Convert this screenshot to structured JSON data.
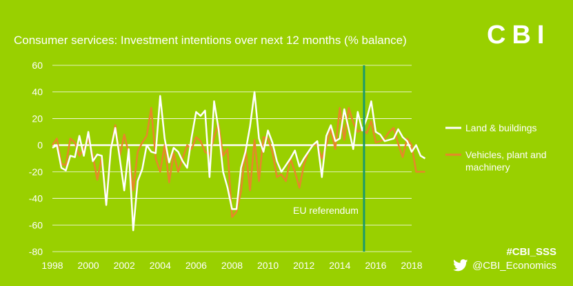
{
  "header": {
    "title": "Consumer services: Investment intentions over next 12 months (% balance)",
    "logo": "CBI"
  },
  "footer": {
    "hashtag": "#CBI_SSS",
    "twitter_handle": "@CBI_Economics"
  },
  "colors": {
    "background": "#99d000",
    "series_land": "#ffffff",
    "series_vehicles": "#e8862a",
    "marker": "#1a9a6a",
    "gridline": "#ffffff"
  },
  "chart_data": {
    "type": "line",
    "title": "Consumer services: Investment intentions over next 12 months (% balance)",
    "ylim": [
      -80,
      60
    ],
    "yticks": [
      -80,
      -60,
      -40,
      -20,
      0,
      20,
      40,
      60
    ],
    "xlim": [
      1998,
      2018
    ],
    "xticks": [
      1998,
      2000,
      2002,
      2004,
      2006,
      2008,
      2010,
      2012,
      2014,
      2016,
      2018
    ],
    "grid": true,
    "legend_position": "right",
    "annotation": {
      "label": "EU referendum",
      "x": 2016.5
    },
    "series": [
      {
        "name": "Land & buildings",
        "color": "#ffffff",
        "points": [
          [
            1998.0,
            -2
          ],
          [
            1998.25,
            0
          ],
          [
            1998.5,
            -17
          ],
          [
            1998.75,
            -19
          ],
          [
            1999.0,
            -8
          ],
          [
            1999.25,
            -9
          ],
          [
            1999.5,
            7
          ],
          [
            1999.75,
            -8
          ],
          [
            2000.0,
            10
          ],
          [
            2000.25,
            -12
          ],
          [
            2000.5,
            -7
          ],
          [
            2000.75,
            -8
          ],
          [
            2001.0,
            -45
          ],
          [
            2001.25,
            -3
          ],
          [
            2001.5,
            13
          ],
          [
            2001.75,
            -10
          ],
          [
            2002.0,
            -34
          ],
          [
            2002.25,
            -3
          ],
          [
            2002.5,
            -64
          ],
          [
            2002.75,
            -27
          ],
          [
            2003.0,
            -18
          ],
          [
            2003.25,
            0
          ],
          [
            2003.5,
            -5
          ],
          [
            2003.75,
            -6
          ],
          [
            2004.0,
            37
          ],
          [
            2004.25,
            5
          ],
          [
            2004.5,
            -13
          ],
          [
            2004.75,
            -2
          ],
          [
            2005.0,
            -5
          ],
          [
            2005.25,
            -12
          ],
          [
            2005.5,
            -17
          ],
          [
            2005.75,
            6
          ],
          [
            2006.0,
            25
          ],
          [
            2006.25,
            22
          ],
          [
            2006.5,
            26
          ],
          [
            2006.75,
            -24
          ],
          [
            2007.0,
            33
          ],
          [
            2007.25,
            12
          ],
          [
            2007.5,
            -20
          ],
          [
            2007.75,
            -32
          ],
          [
            2008.0,
            -48
          ],
          [
            2008.25,
            -48
          ],
          [
            2008.5,
            -17
          ],
          [
            2008.75,
            -5
          ],
          [
            2009.0,
            14
          ],
          [
            2009.25,
            40
          ],
          [
            2009.5,
            5
          ],
          [
            2009.75,
            -5
          ],
          [
            2010.0,
            11
          ],
          [
            2010.25,
            2
          ],
          [
            2010.5,
            -12
          ],
          [
            2010.75,
            -20
          ],
          [
            2011.0,
            -15
          ],
          [
            2011.25,
            -10
          ],
          [
            2011.5,
            -4
          ],
          [
            2011.75,
            -16
          ],
          [
            2012.0,
            -10
          ],
          [
            2012.25,
            -5
          ],
          [
            2012.5,
            0
          ],
          [
            2012.75,
            3
          ],
          [
            2013.0,
            -24
          ],
          [
            2013.25,
            7
          ],
          [
            2013.5,
            15
          ],
          [
            2013.75,
            3
          ],
          [
            2014.0,
            5
          ],
          [
            2014.25,
            27
          ],
          [
            2014.5,
            12
          ],
          [
            2014.75,
            -3
          ],
          [
            2015.0,
            25
          ],
          [
            2015.25,
            11
          ],
          [
            2015.5,
            20
          ],
          [
            2015.75,
            33
          ],
          [
            2016.0,
            10
          ],
          [
            2016.25,
            8
          ],
          [
            2016.5,
            3
          ],
          [
            2016.75,
            4
          ],
          [
            2017.0,
            5
          ],
          [
            2017.25,
            12
          ],
          [
            2017.5,
            6
          ],
          [
            2017.75,
            3
          ],
          [
            2018.0,
            -5
          ],
          [
            2018.25,
            0
          ],
          [
            2018.5,
            -8
          ],
          [
            2018.75,
            -10
          ]
        ]
      },
      {
        "name": "Vehicles, plant and machinery",
        "color": "#e8862a",
        "points": [
          [
            1998.0,
            0
          ],
          [
            1998.25,
            5
          ],
          [
            1998.5,
            -14
          ],
          [
            1998.75,
            -15
          ],
          [
            1999.0,
            5
          ],
          [
            1999.25,
            2
          ],
          [
            1999.5,
            -8
          ],
          [
            1999.75,
            -3
          ],
          [
            2000.0,
            5
          ],
          [
            2000.25,
            -8
          ],
          [
            2000.5,
            -26
          ],
          [
            2000.75,
            -9
          ],
          [
            2001.0,
            -45
          ],
          [
            2001.25,
            -3
          ],
          [
            2001.5,
            15
          ],
          [
            2001.75,
            -8
          ],
          [
            2002.0,
            8
          ],
          [
            2002.25,
            -6
          ],
          [
            2002.5,
            -34
          ],
          [
            2002.75,
            -5
          ],
          [
            2003.0,
            2
          ],
          [
            2003.25,
            7
          ],
          [
            2003.5,
            28
          ],
          [
            2003.75,
            -10
          ],
          [
            2004.0,
            -20
          ],
          [
            2004.25,
            0
          ],
          [
            2004.5,
            -28
          ],
          [
            2004.75,
            -6
          ],
          [
            2005.0,
            -20
          ],
          [
            2005.25,
            -10
          ],
          [
            2005.5,
            0
          ],
          [
            2005.75,
            -3
          ],
          [
            2006.0,
            6
          ],
          [
            2006.25,
            3
          ],
          [
            2006.5,
            -5
          ],
          [
            2006.75,
            -7
          ],
          [
            2007.0,
            6
          ],
          [
            2007.25,
            16
          ],
          [
            2007.5,
            -8
          ],
          [
            2007.75,
            -3
          ],
          [
            2008.0,
            -54
          ],
          [
            2008.25,
            -50
          ],
          [
            2008.5,
            -35
          ],
          [
            2008.75,
            -2
          ],
          [
            2009.0,
            -34
          ],
          [
            2009.25,
            4
          ],
          [
            2009.5,
            -27
          ],
          [
            2009.75,
            6
          ],
          [
            2010.0,
            5
          ],
          [
            2010.25,
            -5
          ],
          [
            2010.5,
            -24
          ],
          [
            2010.75,
            -22
          ],
          [
            2011.0,
            -27
          ],
          [
            2011.25,
            -10
          ],
          [
            2011.5,
            -20
          ],
          [
            2011.75,
            -32
          ],
          [
            2012.0,
            -15
          ],
          [
            2012.25,
            -5
          ],
          [
            2012.5,
            0
          ],
          [
            2012.75,
            0
          ],
          [
            2013.0,
            -10
          ],
          [
            2013.25,
            0
          ],
          [
            2013.5,
            12
          ],
          [
            2013.75,
            -3
          ],
          [
            2014.0,
            28
          ],
          [
            2014.25,
            4
          ],
          [
            2014.5,
            28
          ],
          [
            2014.75,
            17
          ],
          [
            2015.0,
            10
          ],
          [
            2015.25,
            12
          ],
          [
            2015.5,
            9
          ],
          [
            2015.75,
            18
          ],
          [
            2016.0,
            2
          ],
          [
            2016.25,
            3
          ],
          [
            2016.5,
            5
          ],
          [
            2016.75,
            10
          ],
          [
            2017.0,
            13
          ],
          [
            2017.25,
            1
          ],
          [
            2017.5,
            -9
          ],
          [
            2017.75,
            5
          ],
          [
            2018.0,
            0
          ],
          [
            2018.25,
            -20
          ],
          [
            2018.5,
            -20
          ],
          [
            2018.75,
            -20
          ]
        ]
      }
    ]
  }
}
